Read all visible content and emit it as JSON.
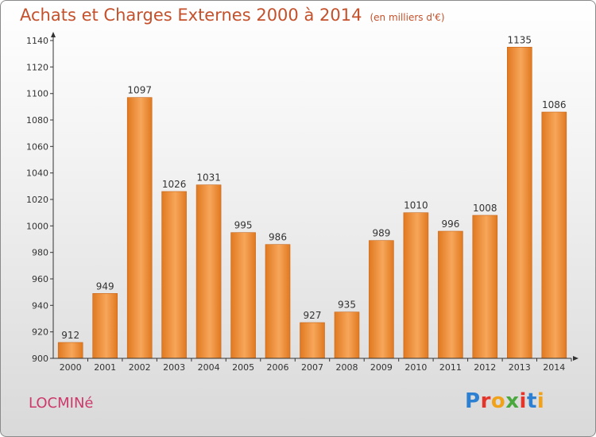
{
  "title": "Achats et Charges Externes 2000 à 2014",
  "unit": "(en milliers d'€)",
  "commune": "LOCMINé",
  "logo": {
    "letters": [
      "P",
      "r",
      "o",
      "x",
      "i",
      "t",
      "i"
    ],
    "colors": [
      "#2d7fd1",
      "#e5352a",
      "#f0a21b",
      "#4aa83e",
      "#e5352a",
      "#2d7fd1",
      "#f0a21b"
    ]
  },
  "colors": {
    "bar_light": "#f7a65a",
    "bar_dark": "#e07920",
    "bar_edge": "#c8661a",
    "text": "#333333"
  },
  "chart_data": {
    "type": "bar",
    "categories": [
      "2000",
      "2001",
      "2002",
      "2003",
      "2004",
      "2005",
      "2006",
      "2007",
      "2008",
      "2009",
      "2010",
      "2011",
      "2012",
      "2013",
      "2014"
    ],
    "values": [
      912,
      949,
      1097,
      1026,
      1031,
      995,
      986,
      927,
      935,
      989,
      1010,
      996,
      1008,
      1135,
      1086
    ],
    "ylim": [
      900,
      1140
    ],
    "yticks": [
      900,
      920,
      940,
      960,
      980,
      1000,
      1020,
      1040,
      1060,
      1080,
      1100,
      1120,
      1140
    ],
    "grid": false,
    "data_labels": true
  }
}
